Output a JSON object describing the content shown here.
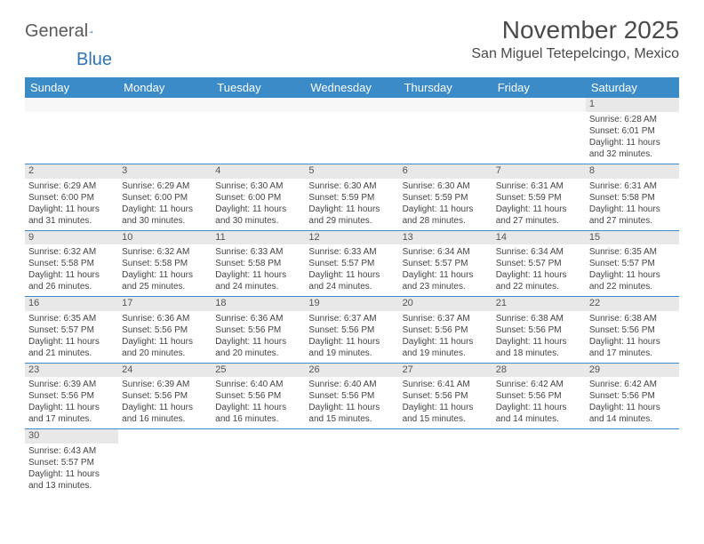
{
  "logo": {
    "text1": "General",
    "text2": "Blue"
  },
  "title": "November 2025",
  "location": "San Miguel Tetepelcingo, Mexico",
  "colors": {
    "header_bg": "#3b8bc9",
    "header_text": "#ffffff",
    "daynum_bg": "#e8e8e8",
    "border": "#3b8bc9",
    "text": "#444444",
    "logo_gray": "#5a5a5a",
    "logo_blue": "#2e75b6"
  },
  "weekdays": [
    "Sunday",
    "Monday",
    "Tuesday",
    "Wednesday",
    "Thursday",
    "Friday",
    "Saturday"
  ],
  "weeks": [
    [
      null,
      null,
      null,
      null,
      null,
      null,
      {
        "n": "1",
        "sr": "6:28 AM",
        "ss": "6:01 PM",
        "dl": "11 hours and 32 minutes."
      }
    ],
    [
      {
        "n": "2",
        "sr": "6:29 AM",
        "ss": "6:00 PM",
        "dl": "11 hours and 31 minutes."
      },
      {
        "n": "3",
        "sr": "6:29 AM",
        "ss": "6:00 PM",
        "dl": "11 hours and 30 minutes."
      },
      {
        "n": "4",
        "sr": "6:30 AM",
        "ss": "6:00 PM",
        "dl": "11 hours and 30 minutes."
      },
      {
        "n": "5",
        "sr": "6:30 AM",
        "ss": "5:59 PM",
        "dl": "11 hours and 29 minutes."
      },
      {
        "n": "6",
        "sr": "6:30 AM",
        "ss": "5:59 PM",
        "dl": "11 hours and 28 minutes."
      },
      {
        "n": "7",
        "sr": "6:31 AM",
        "ss": "5:59 PM",
        "dl": "11 hours and 27 minutes."
      },
      {
        "n": "8",
        "sr": "6:31 AM",
        "ss": "5:58 PM",
        "dl": "11 hours and 27 minutes."
      }
    ],
    [
      {
        "n": "9",
        "sr": "6:32 AM",
        "ss": "5:58 PM",
        "dl": "11 hours and 26 minutes."
      },
      {
        "n": "10",
        "sr": "6:32 AM",
        "ss": "5:58 PM",
        "dl": "11 hours and 25 minutes."
      },
      {
        "n": "11",
        "sr": "6:33 AM",
        "ss": "5:58 PM",
        "dl": "11 hours and 24 minutes."
      },
      {
        "n": "12",
        "sr": "6:33 AM",
        "ss": "5:57 PM",
        "dl": "11 hours and 24 minutes."
      },
      {
        "n": "13",
        "sr": "6:34 AM",
        "ss": "5:57 PM",
        "dl": "11 hours and 23 minutes."
      },
      {
        "n": "14",
        "sr": "6:34 AM",
        "ss": "5:57 PM",
        "dl": "11 hours and 22 minutes."
      },
      {
        "n": "15",
        "sr": "6:35 AM",
        "ss": "5:57 PM",
        "dl": "11 hours and 22 minutes."
      }
    ],
    [
      {
        "n": "16",
        "sr": "6:35 AM",
        "ss": "5:57 PM",
        "dl": "11 hours and 21 minutes."
      },
      {
        "n": "17",
        "sr": "6:36 AM",
        "ss": "5:56 PM",
        "dl": "11 hours and 20 minutes."
      },
      {
        "n": "18",
        "sr": "6:36 AM",
        "ss": "5:56 PM",
        "dl": "11 hours and 20 minutes."
      },
      {
        "n": "19",
        "sr": "6:37 AM",
        "ss": "5:56 PM",
        "dl": "11 hours and 19 minutes."
      },
      {
        "n": "20",
        "sr": "6:37 AM",
        "ss": "5:56 PM",
        "dl": "11 hours and 19 minutes."
      },
      {
        "n": "21",
        "sr": "6:38 AM",
        "ss": "5:56 PM",
        "dl": "11 hours and 18 minutes."
      },
      {
        "n": "22",
        "sr": "6:38 AM",
        "ss": "5:56 PM",
        "dl": "11 hours and 17 minutes."
      }
    ],
    [
      {
        "n": "23",
        "sr": "6:39 AM",
        "ss": "5:56 PM",
        "dl": "11 hours and 17 minutes."
      },
      {
        "n": "24",
        "sr": "6:39 AM",
        "ss": "5:56 PM",
        "dl": "11 hours and 16 minutes."
      },
      {
        "n": "25",
        "sr": "6:40 AM",
        "ss": "5:56 PM",
        "dl": "11 hours and 16 minutes."
      },
      {
        "n": "26",
        "sr": "6:40 AM",
        "ss": "5:56 PM",
        "dl": "11 hours and 15 minutes."
      },
      {
        "n": "27",
        "sr": "6:41 AM",
        "ss": "5:56 PM",
        "dl": "11 hours and 15 minutes."
      },
      {
        "n": "28",
        "sr": "6:42 AM",
        "ss": "5:56 PM",
        "dl": "11 hours and 14 minutes."
      },
      {
        "n": "29",
        "sr": "6:42 AM",
        "ss": "5:56 PM",
        "dl": "11 hours and 14 minutes."
      }
    ],
    [
      {
        "n": "30",
        "sr": "6:43 AM",
        "ss": "5:57 PM",
        "dl": "11 hours and 13 minutes."
      },
      null,
      null,
      null,
      null,
      null,
      null
    ]
  ],
  "labels": {
    "sunrise": "Sunrise: ",
    "sunset": "Sunset: ",
    "daylight": "Daylight: "
  }
}
